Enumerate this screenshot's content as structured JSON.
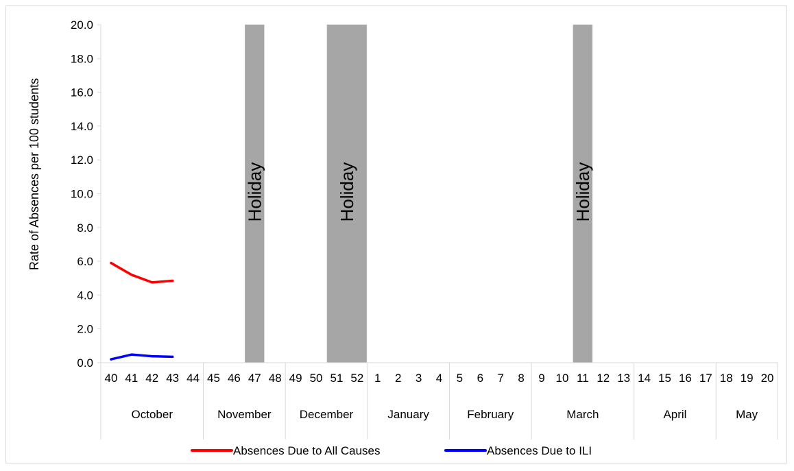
{
  "chart_data": {
    "type": "line",
    "title": "",
    "ylabel": "Rate of Absences per 100 students",
    "xlabel": "",
    "ylim": [
      0,
      20
    ],
    "y_ticks": [
      "0.0",
      "2.0",
      "4.0",
      "6.0",
      "8.0",
      "10.0",
      "12.0",
      "14.0",
      "16.0",
      "18.0",
      "20.0"
    ],
    "weeks": [
      "40",
      "41",
      "42",
      "43",
      "44",
      "45",
      "46",
      "47",
      "48",
      "49",
      "50",
      "51",
      "52",
      "1",
      "2",
      "3",
      "4",
      "5",
      "6",
      "7",
      "8",
      "9",
      "10",
      "11",
      "12",
      "13",
      "14",
      "15",
      "16",
      "17",
      "18",
      "19",
      "20"
    ],
    "months": [
      {
        "name": "October",
        "span": 5
      },
      {
        "name": "November",
        "span": 4
      },
      {
        "name": "December",
        "span": 4
      },
      {
        "name": "January",
        "span": 4
      },
      {
        "name": "February",
        "span": 4
      },
      {
        "name": "March",
        "span": 5
      },
      {
        "name": "April",
        "span": 4
      },
      {
        "name": "May",
        "span": 3
      }
    ],
    "holidays": [
      {
        "label": "Holiday",
        "weeks": [
          "47"
        ]
      },
      {
        "label": "Holiday",
        "weeks": [
          "51",
          "52"
        ]
      },
      {
        "label": "Holiday",
        "weeks": [
          "11"
        ]
      }
    ],
    "series": [
      {
        "name": "Absences Due to All Causes",
        "color": "#ff0000",
        "weeks": [
          "40",
          "41",
          "42",
          "43"
        ],
        "values": [
          5.9,
          5.2,
          4.75,
          4.85
        ]
      },
      {
        "name": "Absences Due to ILI",
        "color": "#0000ff",
        "weeks": [
          "40",
          "41",
          "42",
          "43"
        ],
        "values": [
          0.2,
          0.48,
          0.38,
          0.35
        ]
      }
    ],
    "legend_position": "bottom",
    "holiday_color": "#a6a6a6",
    "grid": false
  }
}
